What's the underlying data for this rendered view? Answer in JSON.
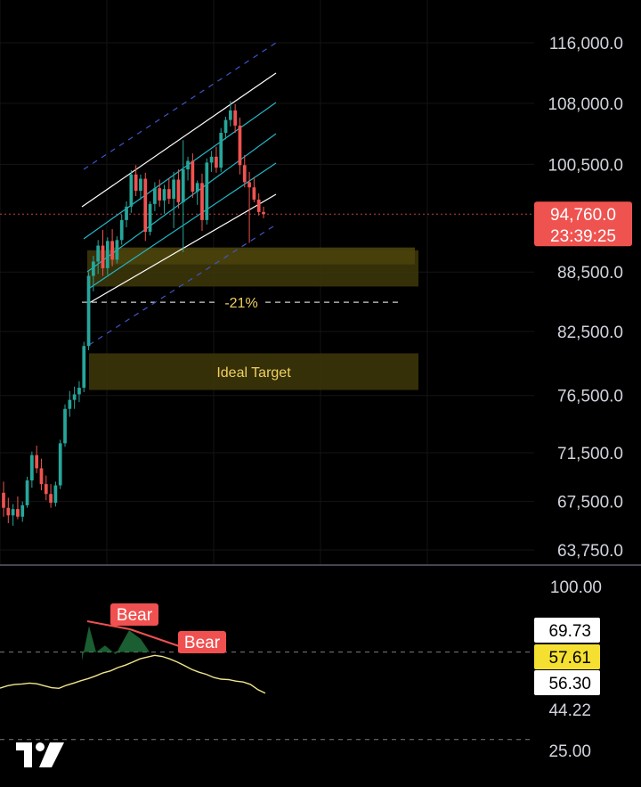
{
  "colors": {
    "background": "#000000",
    "up": "#26a69a",
    "down": "#ef5350",
    "channel_main": "#ffffff",
    "channel_inner": "#22b7c8",
    "channel_outer": "#3e55c8",
    "zone": "#3b3509",
    "zone_text": "#f0d060",
    "rsi_line": "#f0e68c",
    "bear": "#f05050",
    "rsi_fill": "#1f6e3a"
  },
  "chart_data": {
    "type": "candlestick",
    "price_axis": {
      "ticks": [
        "116,000.0",
        "108,000.0",
        "100,500.0",
        "88,500.0",
        "82,500.0",
        "76,500.0",
        "71,500.0",
        "67,500.0",
        "63,750.0"
      ],
      "log_scale": true
    },
    "current_price": {
      "value": "94,760.0",
      "countdown": "23:39:25",
      "price": 94760
    },
    "annotations": {
      "drawdown": "-21%",
      "target_zone_label": "Ideal Target"
    },
    "candles_ohlc": [
      [
        68200,
        69100,
        66300,
        67000
      ],
      [
        67000,
        67800,
        65800,
        66400
      ],
      [
        66400,
        67300,
        65600,
        66900
      ],
      [
        66900,
        67900,
        66100,
        66300
      ],
      [
        66300,
        67500,
        65900,
        67200
      ],
      [
        67200,
        69500,
        67000,
        69200
      ],
      [
        69200,
        71600,
        68600,
        71300
      ],
      [
        71300,
        72100,
        69800,
        70200
      ],
      [
        70200,
        71000,
        68400,
        68900
      ],
      [
        68900,
        69600,
        67600,
        68100
      ],
      [
        68100,
        68900,
        67000,
        67400
      ],
      [
        67400,
        69100,
        67100,
        68800
      ],
      [
        68800,
        72600,
        68500,
        72300
      ],
      [
        72300,
        75700,
        72000,
        75300
      ],
      [
        75300,
        76900,
        74600,
        76100
      ],
      [
        76100,
        77300,
        75300,
        76600
      ],
      [
        76600,
        77800,
        75900,
        77200
      ],
      [
        77200,
        81500,
        76800,
        81100
      ],
      [
        81100,
        88500,
        80700,
        88100
      ],
      [
        88100,
        90200,
        86500,
        89600
      ],
      [
        89600,
        91900,
        88300,
        91300
      ],
      [
        91300,
        93000,
        88100,
        88900
      ],
      [
        88900,
        92200,
        88200,
        91800
      ],
      [
        91800,
        93100,
        89100,
        89800
      ],
      [
        89800,
        92300,
        89400,
        91900
      ],
      [
        91900,
        94700,
        91400,
        94100
      ],
      [
        94100,
        96200,
        93300,
        95600
      ],
      [
        95600,
        99800,
        94900,
        99300
      ],
      [
        99300,
        100400,
        96800,
        97400
      ],
      [
        97400,
        99300,
        96400,
        98800
      ],
      [
        98800,
        99500,
        91800,
        92800
      ],
      [
        92800,
        96200,
        92400,
        95900
      ],
      [
        95900,
        98400,
        95100,
        97700
      ],
      [
        97700,
        98700,
        95600,
        96300
      ],
      [
        96300,
        98100,
        94800,
        97600
      ],
      [
        97600,
        98900,
        95900,
        96500
      ],
      [
        96500,
        99600,
        93200,
        98700
      ],
      [
        98700,
        99900,
        95400,
        96100
      ],
      [
        96100,
        103400,
        90600,
        99900
      ],
      [
        99900,
        101400,
        98600,
        100900
      ],
      [
        100900,
        101800,
        96600,
        97300
      ],
      [
        97300,
        98600,
        95800,
        98300
      ],
      [
        98300,
        99400,
        92900,
        94100
      ],
      [
        94100,
        101200,
        93600,
        100700
      ],
      [
        100700,
        102100,
        99600,
        101400
      ],
      [
        101400,
        102600,
        99500,
        100100
      ],
      [
        100100,
        104900,
        99600,
        104300
      ],
      [
        104300,
        106300,
        103500,
        105900
      ],
      [
        105900,
        108300,
        105100,
        107100
      ],
      [
        107100,
        107900,
        104300,
        105200
      ],
      [
        105200,
        106200,
        99300,
        100400
      ],
      [
        100400,
        101600,
        97800,
        98400
      ],
      [
        98400,
        99600,
        91600,
        97800
      ],
      [
        97800,
        99000,
        96100,
        96400
      ],
      [
        96400,
        97100,
        94600,
        95000
      ],
      [
        95000,
        95600,
        94300,
        94760
      ]
    ],
    "channel": {
      "lines": [
        "upper-outer",
        "upper",
        "middle",
        "lower-inner",
        "lower",
        "lower-outer"
      ]
    },
    "rsi": {
      "ticks": [
        "100.00",
        "25.00"
      ],
      "upper_band": 70,
      "lower_band": 30,
      "values": [
        53.5,
        54.6,
        55.2,
        55.4,
        55.8,
        55.5,
        54.6,
        53.7,
        53.4,
        54.8,
        55.8,
        56.9,
        57.9,
        59.1,
        60.5,
        61.4,
        62.9,
        64.0,
        65.4,
        66.9,
        67.7,
        68.5,
        68.0,
        66.9,
        65.5,
        63.9,
        62.1,
        60.8,
        59.8,
        58.4,
        57.6,
        57.4,
        56.7,
        56.3,
        55.2,
        52.8,
        51.2
      ],
      "labels": {
        "v1": "69.73",
        "v2": "57.61",
        "v3": "56.30",
        "v4": "44.22"
      },
      "divergence_labels": [
        "Bear",
        "Bear"
      ]
    }
  }
}
